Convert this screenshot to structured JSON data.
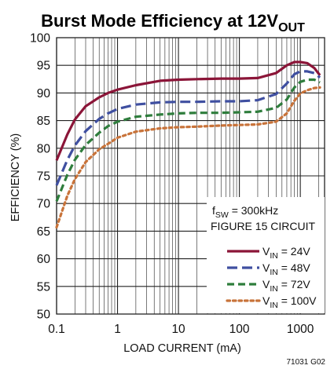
{
  "chart_data": {
    "type": "line",
    "title_main": "Burst Mode Efficiency at 12V",
    "title_sub": "OUT",
    "xlabel": "LOAD CURRENT (mA)",
    "ylabel": "EFFICIENCY (%)",
    "x_scale": "log",
    "xlim": [
      0.1,
      2500
    ],
    "ylim": [
      50,
      100
    ],
    "x_ticks": [
      0.1,
      1,
      10,
      100,
      1000
    ],
    "x_tick_labels": [
      "0.1",
      "1",
      "10",
      "100",
      "1000"
    ],
    "y_ticks": [
      50,
      55,
      60,
      65,
      70,
      75,
      80,
      85,
      90,
      95,
      100
    ],
    "y_tick_labels": [
      "50",
      "55",
      "60",
      "65",
      "70",
      "75",
      "80",
      "85",
      "90",
      "95",
      "100"
    ],
    "grid": true,
    "annotation_line1": {
      "main": "f",
      "sub": "SW",
      "rest": " = 300kHz"
    },
    "annotation_line2": "FIGURE 15 CIRCUIT",
    "figure_id": "71031 G02",
    "series": [
      {
        "legend_main": "V",
        "legend_sub": "IN",
        "legend_rest": " = 24V",
        "color": "#8b1538",
        "dash": "solid",
        "x": [
          0.1,
          0.15,
          0.2,
          0.3,
          0.5,
          0.7,
          1,
          2,
          5,
          10,
          20,
          50,
          100,
          200,
          400,
          600,
          800,
          1000,
          1300,
          1700,
          2100
        ],
        "y": [
          77.8,
          82.5,
          85.2,
          87.6,
          89.2,
          90.0,
          90.6,
          91.4,
          92.2,
          92.4,
          92.5,
          92.6,
          92.6,
          92.7,
          93.6,
          95.0,
          95.6,
          95.6,
          95.4,
          94.5,
          93.2
        ]
      },
      {
        "legend_main": "V",
        "legend_sub": "IN",
        "legend_rest": " = 48V",
        "color": "#3f4fa0",
        "dash": "long",
        "x": [
          0.1,
          0.15,
          0.2,
          0.3,
          0.5,
          0.7,
          1,
          2,
          5,
          10,
          20,
          50,
          100,
          200,
          400,
          600,
          800,
          1000,
          1300,
          1700,
          2100
        ],
        "y": [
          73.3,
          77.9,
          80.5,
          83.1,
          85.3,
          86.3,
          87.1,
          87.9,
          88.3,
          88.4,
          88.4,
          88.5,
          88.5,
          88.7,
          89.8,
          91.7,
          93.4,
          93.9,
          93.9,
          93.6,
          92.8
        ]
      },
      {
        "legend_main": "V",
        "legend_sub": "IN",
        "legend_rest": " = 72V",
        "color": "#2e7d3c",
        "dash": "medium",
        "x": [
          0.1,
          0.15,
          0.2,
          0.3,
          0.5,
          0.7,
          1,
          2,
          5,
          10,
          20,
          50,
          100,
          200,
          400,
          600,
          800,
          1000,
          1300,
          1700,
          2100
        ],
        "y": [
          70.4,
          75.2,
          77.9,
          80.6,
          82.8,
          84.0,
          84.8,
          85.7,
          86.1,
          86.3,
          86.4,
          86.4,
          86.5,
          86.6,
          87.3,
          88.8,
          91.0,
          92.0,
          92.4,
          92.4,
          91.9
        ]
      },
      {
        "legend_main": "V",
        "legend_sub": "IN",
        "legend_rest": " = 100V",
        "color": "#c8733a",
        "dash": "dotted",
        "x": [
          0.1,
          0.15,
          0.2,
          0.3,
          0.5,
          0.7,
          1,
          2,
          5,
          10,
          20,
          50,
          100,
          200,
          400,
          600,
          800,
          1000,
          1300,
          1700,
          2100
        ],
        "y": [
          65.7,
          71.4,
          74.4,
          77.5,
          79.8,
          80.8,
          81.9,
          83.0,
          83.6,
          83.8,
          83.9,
          84.1,
          84.2,
          84.3,
          84.8,
          86.3,
          88.6,
          89.9,
          90.5,
          90.9,
          91.0
        ]
      }
    ]
  }
}
